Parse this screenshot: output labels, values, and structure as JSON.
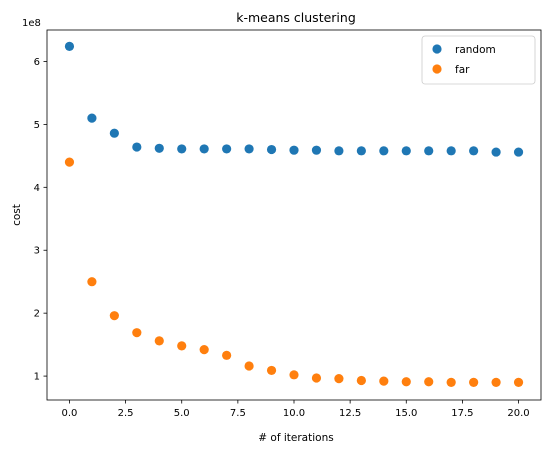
{
  "chart_data": {
    "type": "scatter",
    "title": "k-means clustering",
    "xlabel": "# of iterations",
    "ylabel": "cost",
    "offset_label": "1e8",
    "xlim": [
      -1.0,
      21.0
    ],
    "ylim": [
      0.62,
      6.5
    ],
    "xticks": [
      0.0,
      2.5,
      5.0,
      7.5,
      10.0,
      12.5,
      15.0,
      17.5,
      20.0
    ],
    "xtick_labels": [
      "0.0",
      "2.5",
      "5.0",
      "7.5",
      "10.0",
      "12.5",
      "15.0",
      "17.5",
      "20.0"
    ],
    "yticks": [
      1,
      2,
      3,
      4,
      5,
      6
    ],
    "ytick_labels": [
      "1",
      "2",
      "3",
      "4",
      "5",
      "6"
    ],
    "grid": false,
    "legend_position": "top-right",
    "x": [
      0,
      1,
      2,
      3,
      4,
      5,
      6,
      7,
      8,
      9,
      10,
      11,
      12,
      13,
      14,
      15,
      16,
      17,
      18,
      19,
      20
    ],
    "series": [
      {
        "name": "random",
        "color": "#1f77b4",
        "values": [
          6.24,
          5.1,
          4.86,
          4.64,
          4.62,
          4.61,
          4.61,
          4.61,
          4.61,
          4.6,
          4.59,
          4.59,
          4.58,
          4.58,
          4.58,
          4.58,
          4.58,
          4.58,
          4.58,
          4.56,
          4.56
        ]
      },
      {
        "name": "far",
        "color": "#ff7f0e",
        "values": [
          4.4,
          2.5,
          1.96,
          1.69,
          1.56,
          1.48,
          1.42,
          1.33,
          1.16,
          1.09,
          1.02,
          0.97,
          0.96,
          0.93,
          0.92,
          0.91,
          0.91,
          0.9,
          0.9,
          0.9,
          0.9
        ]
      }
    ]
  }
}
